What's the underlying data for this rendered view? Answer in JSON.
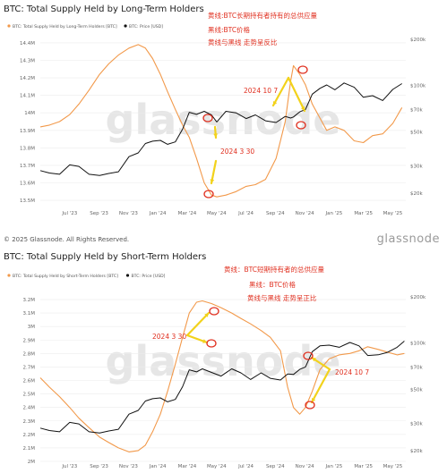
{
  "footer": "© 2025 Glassnode. All Rights Reserved.",
  "brand": "glassnode",
  "chart_data": [
    {
      "type": "line",
      "title": "BTC: Total Supply Held by Long-Term Holders",
      "watermark": "glassnode",
      "legend": [
        "BTC: Total Supply Held by Long-Term Holders [BTC]",
        "BTC: Price [USD]"
      ],
      "legend_placement": "top-left",
      "x_ticks": [
        "Jul '23",
        "Sep '23",
        "Nov '23",
        "Jan '24",
        "Mar '24",
        "May '24",
        "Jul '24",
        "Sep '24",
        "Nov '24",
        "Jan '25",
        "Mar '25",
        "May '25"
      ],
      "y_left_ticks": [
        "13.5M",
        "13.6M",
        "13.7M",
        "13.8M",
        "13.9M",
        "14M",
        "14.1M",
        "14.2M",
        "14.3M",
        "14.4M"
      ],
      "y_left_lim": [
        13.48,
        14.42
      ],
      "y_right_ticks": [
        "$20k",
        "$30k",
        "$50k",
        "$70k",
        "$100k",
        "$200k"
      ],
      "y_right_scale": "log",
      "y_right_lim": [
        17000,
        200000
      ],
      "grid": true,
      "colors": {
        "lth": "#f2994a",
        "price": "#111111",
        "annotation": "#e03020",
        "arrow": "#f2d21b"
      },
      "series": [
        {
          "name": "BTC: Total Supply Held by Long-Term Holders [BTC]",
          "axis": "left",
          "x": [
            "2023-05-01",
            "2023-05-20",
            "2023-06-10",
            "2023-07-01",
            "2023-07-20",
            "2023-08-10",
            "2023-09-01",
            "2023-09-20",
            "2023-10-10",
            "2023-11-01",
            "2023-11-20",
            "2023-12-05",
            "2023-12-20",
            "2024-01-05",
            "2024-01-20",
            "2024-02-05",
            "2024-02-20",
            "2024-03-05",
            "2024-03-20",
            "2024-04-05",
            "2024-04-20",
            "2024-05-01",
            "2024-05-20",
            "2024-06-10",
            "2024-07-01",
            "2024-07-20",
            "2024-08-10",
            "2024-09-01",
            "2024-09-20",
            "2024-10-01",
            "2024-10-07",
            "2024-10-20",
            "2024-11-01",
            "2024-11-15",
            "2024-12-01",
            "2024-12-15",
            "2025-01-01",
            "2025-01-20",
            "2025-02-10",
            "2025-03-01",
            "2025-03-20",
            "2025-04-10",
            "2025-05-01",
            "2025-05-20"
          ],
          "values": [
            13.92,
            13.93,
            13.95,
            13.99,
            14.05,
            14.13,
            14.22,
            14.28,
            14.33,
            14.37,
            14.39,
            14.37,
            14.31,
            14.22,
            14.12,
            14.02,
            13.93,
            13.86,
            13.74,
            13.6,
            13.53,
            13.52,
            13.53,
            13.55,
            13.58,
            13.59,
            13.62,
            13.74,
            13.95,
            14.18,
            14.27,
            14.22,
            14.16,
            14.05,
            13.97,
            13.9,
            13.92,
            13.9,
            13.84,
            13.83,
            13.87,
            13.88,
            13.94,
            14.03
          ]
        },
        {
          "name": "BTC: Price [USD]",
          "axis": "right",
          "x": [
            "2023-05-01",
            "2023-05-20",
            "2023-06-10",
            "2023-07-01",
            "2023-07-20",
            "2023-08-10",
            "2023-09-01",
            "2023-09-20",
            "2023-10-10",
            "2023-11-01",
            "2023-11-20",
            "2023-12-05",
            "2023-12-20",
            "2024-01-05",
            "2024-01-20",
            "2024-02-05",
            "2024-02-20",
            "2024-03-05",
            "2024-03-20",
            "2024-04-05",
            "2024-04-20",
            "2024-05-01",
            "2024-05-20",
            "2024-06-10",
            "2024-07-01",
            "2024-07-20",
            "2024-08-10",
            "2024-09-01",
            "2024-09-20",
            "2024-10-01",
            "2024-10-07",
            "2024-10-20",
            "2024-11-01",
            "2024-11-15",
            "2024-12-01",
            "2024-12-15",
            "2025-01-01",
            "2025-01-20",
            "2025-02-10",
            "2025-03-01",
            "2025-03-20",
            "2025-04-10",
            "2025-05-01",
            "2025-05-20"
          ],
          "values": [
            28000,
            27000,
            26500,
            30500,
            29800,
            26500,
            26000,
            26800,
            27500,
            34500,
            36500,
            42000,
            43500,
            44000,
            41500,
            43000,
            52000,
            67000,
            65000,
            68000,
            64500,
            58000,
            68000,
            66500,
            61000,
            64500,
            59000,
            57500,
            63000,
            61500,
            62500,
            67500,
            70000,
            88000,
            96000,
            101000,
            94000,
            104000,
            97500,
            84000,
            86000,
            80000,
            94500,
            103000
          ]
        }
      ],
      "annotations": [
        {
          "text": "黄线:BTC长期持有者持有的总供应量"
        },
        {
          "text": "黑线:BTC价格"
        },
        {
          "text": "黄线与黑线 走势呈反比"
        },
        {
          "text": "2024 10 7"
        },
        {
          "text": "2024 3 30"
        }
      ]
    },
    {
      "type": "line",
      "title": "BTC: Total Supply Held by Short-Term Holders",
      "watermark": "glassnode",
      "legend": [
        "BTC: Total Supply Held by Short-Term Holders [BTC]",
        "BTC: Price [USD]"
      ],
      "legend_placement": "top-left",
      "x_ticks": [
        "Jul '23",
        "Sep '23",
        "Nov '23",
        "Jan '24",
        "Mar '24",
        "May '24",
        "Jul '24",
        "Sep '24",
        "Nov '24",
        "Jan '25",
        "Mar '25",
        "May '25"
      ],
      "y_left_ticks": [
        "2M",
        "2.1M",
        "2.2M",
        "2.3M",
        "2.4M",
        "2.5M",
        "2.6M",
        "2.7M",
        "2.8M",
        "2.9M",
        "3M",
        "3.1M",
        "3.2M"
      ],
      "y_left_lim": [
        2.0,
        3.22
      ],
      "y_right_ticks": [
        "$20k",
        "$30k",
        "$50k",
        "$70k",
        "$100k",
        "$200k"
      ],
      "y_right_scale": "log",
      "y_right_lim": [
        17000,
        200000
      ],
      "grid": true,
      "colors": {
        "sth": "#f2994a",
        "price": "#111111",
        "annotation": "#e03020",
        "arrow": "#f2d21b"
      },
      "series": [
        {
          "name": "BTC: Total Supply Held by Short-Term Holders [BTC]",
          "axis": "left",
          "x": [
            "2023-05-01",
            "2023-05-20",
            "2023-06-10",
            "2023-07-01",
            "2023-07-20",
            "2023-08-10",
            "2023-09-01",
            "2023-09-20",
            "2023-10-10",
            "2023-11-01",
            "2023-11-20",
            "2023-12-05",
            "2023-12-20",
            "2024-01-05",
            "2024-01-20",
            "2024-02-05",
            "2024-02-20",
            "2024-03-05",
            "2024-03-20",
            "2024-04-01",
            "2024-04-20",
            "2024-05-10",
            "2024-06-01",
            "2024-06-20",
            "2024-07-10",
            "2024-08-01",
            "2024-08-20",
            "2024-09-10",
            "2024-09-25",
            "2024-10-07",
            "2024-10-20",
            "2024-11-01",
            "2024-11-15",
            "2024-12-01",
            "2024-12-20",
            "2025-01-10",
            "2025-02-01",
            "2025-02-20",
            "2025-03-10",
            "2025-04-01",
            "2025-04-20",
            "2025-05-10",
            "2025-05-25"
          ],
          "values": [
            2.62,
            2.55,
            2.48,
            2.4,
            2.32,
            2.25,
            2.18,
            2.14,
            2.1,
            2.07,
            2.08,
            2.12,
            2.22,
            2.35,
            2.52,
            2.72,
            2.92,
            3.1,
            3.18,
            3.19,
            3.17,
            3.14,
            3.1,
            3.06,
            3.02,
            2.97,
            2.92,
            2.82,
            2.55,
            2.4,
            2.35,
            2.4,
            2.52,
            2.68,
            2.76,
            2.79,
            2.8,
            2.82,
            2.85,
            2.83,
            2.81,
            2.79,
            2.8
          ]
        },
        {
          "name": "BTC: Price [USD]",
          "axis": "right",
          "x": [
            "2023-05-01",
            "2023-05-20",
            "2023-06-10",
            "2023-07-01",
            "2023-07-20",
            "2023-08-10",
            "2023-09-01",
            "2023-09-20",
            "2023-10-10",
            "2023-11-01",
            "2023-11-20",
            "2023-12-05",
            "2023-12-20",
            "2024-01-05",
            "2024-01-20",
            "2024-02-05",
            "2024-02-20",
            "2024-03-05",
            "2024-03-20",
            "2024-04-01",
            "2024-04-20",
            "2024-05-10",
            "2024-06-01",
            "2024-06-20",
            "2024-07-10",
            "2024-08-01",
            "2024-08-20",
            "2024-09-10",
            "2024-09-25",
            "2024-10-07",
            "2024-10-20",
            "2024-11-01",
            "2024-11-15",
            "2024-12-01",
            "2024-12-20",
            "2025-01-10",
            "2025-02-01",
            "2025-02-20",
            "2025-03-10",
            "2025-04-01",
            "2025-04-20",
            "2025-05-10",
            "2025-05-25"
          ],
          "values": [
            28000,
            27000,
            26500,
            30500,
            29800,
            26500,
            26000,
            26800,
            27500,
            34500,
            36500,
            42000,
            43500,
            44000,
            41500,
            43000,
            52000,
            67000,
            65000,
            68000,
            64500,
            61000,
            68000,
            64000,
            58000,
            64000,
            59000,
            57500,
            63000,
            62500,
            67500,
            70000,
            88000,
            96000,
            97000,
            94000,
            101000,
            96000,
            83000,
            84000,
            87000,
            94000,
            103000
          ]
        }
      ],
      "annotations": [
        {
          "text": "黄线：BTC短期持有者的总供应量"
        },
        {
          "text": "黑线：BTC价格"
        },
        {
          "text": "黄线与黑线 走势呈正比"
        },
        {
          "text": "2024 3 30"
        },
        {
          "text": "2024 10 7"
        }
      ]
    }
  ]
}
